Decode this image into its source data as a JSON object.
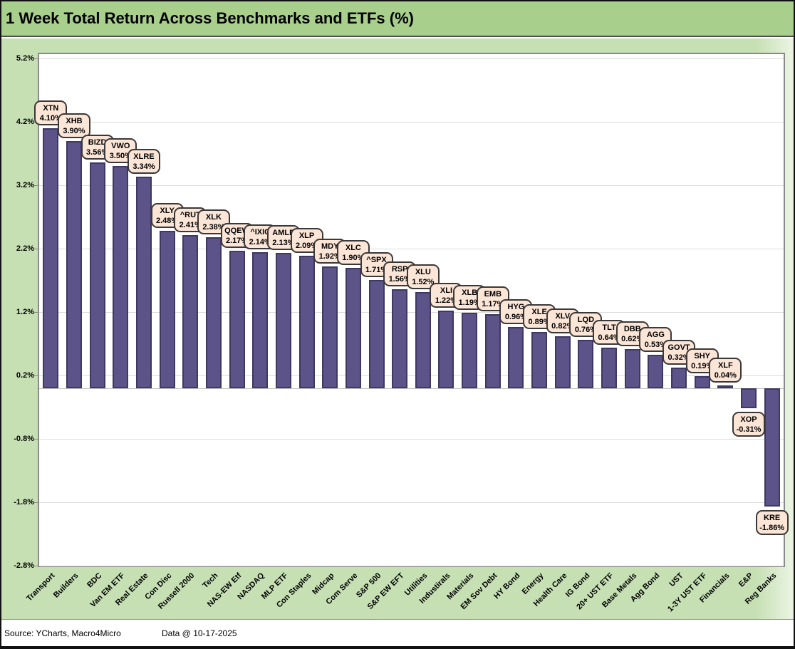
{
  "title": "1 Week Total Return Across Benchmarks and ETFs (%)",
  "footer": {
    "source": "Source: YCharts, Macro4Micro",
    "date": "Data @ 10-17-2025"
  },
  "colors": {
    "title_bg": "#a9cf8d",
    "chart_bg": "#c6e0b4",
    "plot_bg": "#ffffff",
    "bar_fill": "#5c5488",
    "bar_border": "#3e3862",
    "label_box_fill": "#fbe5d6",
    "label_box_border": "#3b3838",
    "gridline": "#dcdcdc"
  },
  "chart_data": {
    "type": "bar",
    "title": "1 Week Total Return Across Benchmarks and ETFs (%)",
    "xlabel": "",
    "ylabel": "",
    "ylim": [
      -2.8,
      5.2
    ],
    "ytick_labels": [
      "5.2%",
      "4.2%",
      "3.2%",
      "2.2%",
      "1.2%",
      "0.2%",
      "-0.8%",
      "-1.8%",
      "-2.8%"
    ],
    "ytick_values": [
      5.2,
      4.2,
      3.2,
      2.2,
      1.2,
      0.2,
      -0.8,
      -1.8,
      -2.8
    ],
    "grid": true,
    "legend_position": "none",
    "bars": [
      {
        "category": "Transport",
        "ticker": "XTN",
        "value": 4.1,
        "label": "4.10%"
      },
      {
        "category": "Builders",
        "ticker": "XHB",
        "value": 3.9,
        "label": "3.90%"
      },
      {
        "category": "BDC",
        "ticker": "BIZD",
        "value": 3.56,
        "label": "3.56%"
      },
      {
        "category": "Van EM ETF",
        "ticker": "VWO",
        "value": 3.5,
        "label": "3.50%"
      },
      {
        "category": "Real Estate",
        "ticker": "XLRE",
        "value": 3.34,
        "label": "3.34%"
      },
      {
        "category": "Con Disc",
        "ticker": "XLY",
        "value": 2.48,
        "label": "2.48%"
      },
      {
        "category": "Russell 2000",
        "ticker": "^RUT",
        "value": 2.41,
        "label": "2.41%"
      },
      {
        "category": "Tech",
        "ticker": "XLK",
        "value": 2.38,
        "label": "2.38%"
      },
      {
        "category": "NAS-EW Etf",
        "ticker": "QQEW",
        "value": 2.17,
        "label": "2.17%"
      },
      {
        "category": "NASDAQ",
        "ticker": "^IXIC",
        "value": 2.14,
        "label": "2.14%"
      },
      {
        "category": "MLP ETF",
        "ticker": "AMLP",
        "value": 2.13,
        "label": "2.13%"
      },
      {
        "category": "Con Staples",
        "ticker": "XLP",
        "value": 2.09,
        "label": "2.09%"
      },
      {
        "category": "Midcap",
        "ticker": "MDY",
        "value": 1.92,
        "label": "1.92%"
      },
      {
        "category": "Com Serve",
        "ticker": "XLC",
        "value": 1.9,
        "label": "1.90%"
      },
      {
        "category": "S&P 500",
        "ticker": "^SPX",
        "value": 1.71,
        "label": "1.71%"
      },
      {
        "category": "S&P EW EFT",
        "ticker": "RSP",
        "value": 1.56,
        "label": "1.56%"
      },
      {
        "category": "Utilities",
        "ticker": "XLU",
        "value": 1.52,
        "label": "1.52%"
      },
      {
        "category": "Industirals",
        "ticker": "XLI",
        "value": 1.22,
        "label": "1.22%"
      },
      {
        "category": "Materials",
        "ticker": "XLB",
        "value": 1.19,
        "label": "1.19%"
      },
      {
        "category": "EM Sov Debt",
        "ticker": "EMB",
        "value": 1.17,
        "label": "1.17%"
      },
      {
        "category": "HY Bond",
        "ticker": "HYG",
        "value": 0.96,
        "label": "0.96%"
      },
      {
        "category": "Energy",
        "ticker": "XLE",
        "value": 0.89,
        "label": "0.89%"
      },
      {
        "category": "Health Care",
        "ticker": "XLV",
        "value": 0.82,
        "label": "0.82%"
      },
      {
        "category": "IG Bond",
        "ticker": "LQD",
        "value": 0.76,
        "label": "0.76%"
      },
      {
        "category": "20+ UST ETF",
        "ticker": "TLT",
        "value": 0.64,
        "label": "0.64%"
      },
      {
        "category": "Base Metals",
        "ticker": "DBB",
        "value": 0.62,
        "label": "0.62%"
      },
      {
        "category": "Agg Bond",
        "ticker": "AGG",
        "value": 0.53,
        "label": "0.53%"
      },
      {
        "category": "UST",
        "ticker": "GOVT",
        "value": 0.32,
        "label": "0.32%"
      },
      {
        "category": "1-3Y UST ETF",
        "ticker": "SHY",
        "value": 0.19,
        "label": "0.19%"
      },
      {
        "category": "Financials",
        "ticker": "XLF",
        "value": 0.04,
        "label": "0.04%"
      },
      {
        "category": "E&P",
        "ticker": "XOP",
        "value": -0.31,
        "label": "-0.31%"
      },
      {
        "category": "Reg Banks",
        "ticker": "KRE",
        "value": -1.86,
        "label": "-1.86%"
      }
    ]
  }
}
